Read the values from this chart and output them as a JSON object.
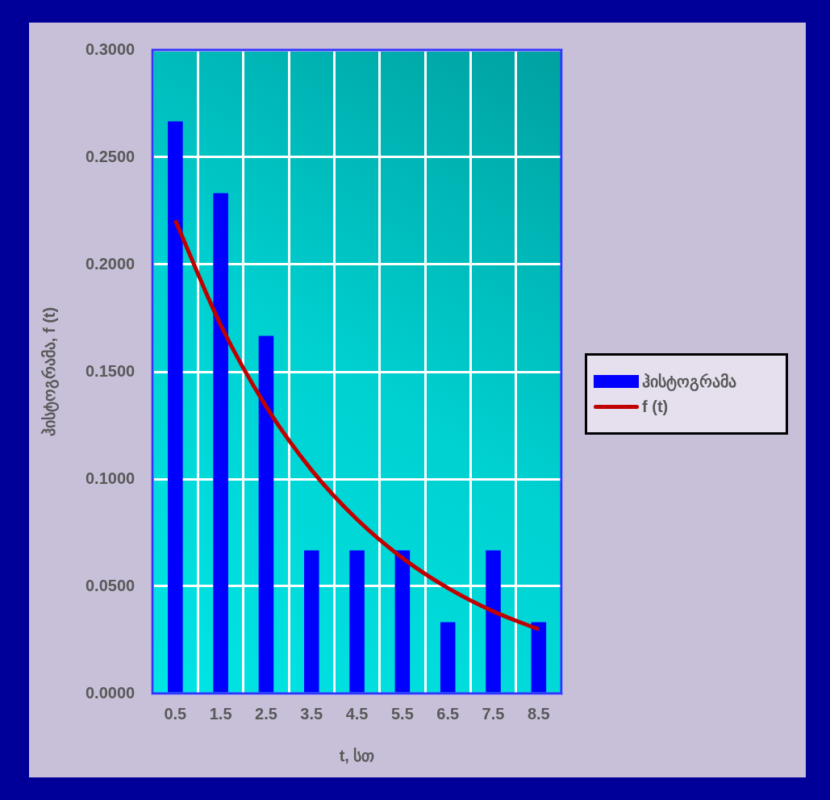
{
  "chart_data": {
    "type": "bar",
    "xlabel": "t, სთ",
    "ylabel": "ჰისტოგრამა, f (t)",
    "categories": [
      "0.5",
      "1.5",
      "2.5",
      "3.5",
      "4.5",
      "5.5",
      "6.5",
      "7.5",
      "8.5"
    ],
    "series": [
      {
        "name": "ჰისტოგრამა",
        "color": "#0000ff",
        "values": [
          0.2667,
          0.2333,
          0.1667,
          0.0667,
          0.0667,
          0.0667,
          0.0333,
          0.0667,
          0.0333
        ]
      },
      {
        "name": "f (t)",
        "type": "line",
        "color": "#c00000",
        "values": [
          0.2206,
          0.1718,
          0.1338,
          0.1042,
          0.0812,
          0.0632,
          0.0492,
          0.0383,
          0.0299
        ]
      }
    ],
    "ylim": [
      0,
      0.3
    ],
    "yticks": [
      {
        "value": 0,
        "label": "0.0000"
      },
      {
        "value": 0.05,
        "label": "0.0500"
      },
      {
        "value": 0.1,
        "label": "0.1000"
      },
      {
        "value": 0.15,
        "label": "0.1500"
      },
      {
        "value": 0.2,
        "label": "0.2000"
      },
      {
        "value": 0.25,
        "label": "0.2500"
      },
      {
        "value": 0.3,
        "label": "0.3000"
      }
    ],
    "grid": true,
    "legend": "right"
  }
}
